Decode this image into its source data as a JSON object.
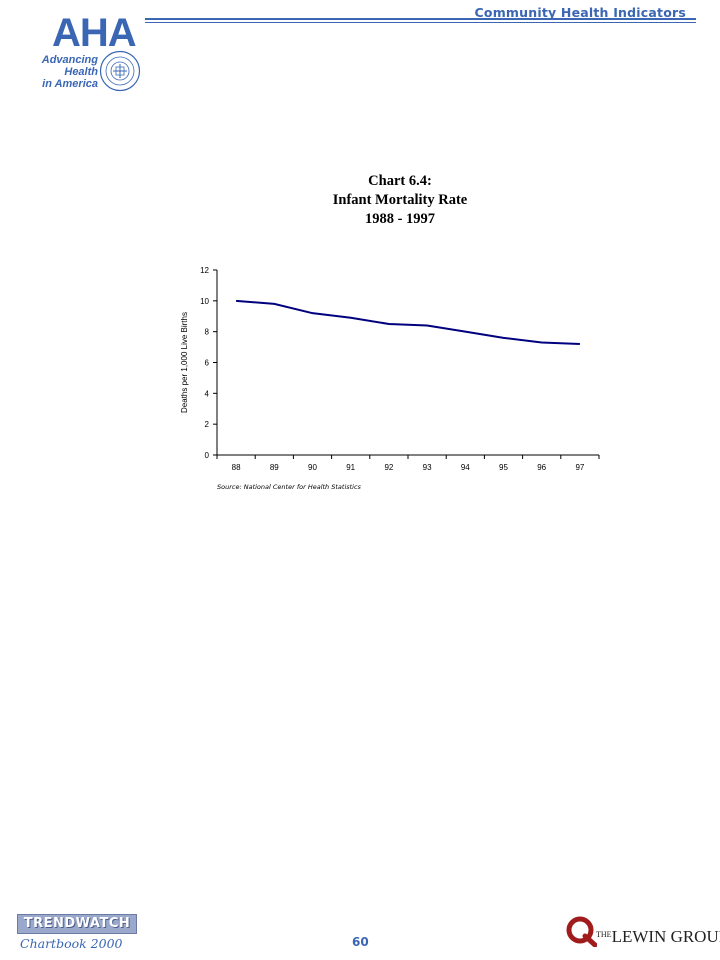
{
  "header": {
    "section_title": "Community Health Indicators",
    "logo_text": "AHA",
    "logo_tagline_line1": "Advancing Health",
    "logo_tagline_line2": "in America",
    "accent_color": "#3a66b4"
  },
  "chart_title": {
    "line1": "Chart 6.4:",
    "line2": "Infant Mortality Rate",
    "line3": "1988 - 1997"
  },
  "chart_data": {
    "type": "line",
    "title": "Chart 6.4: Infant Mortality Rate 1988 - 1997",
    "xlabel": "",
    "ylabel": "Deaths per 1,000 Live Births",
    "categories": [
      "88",
      "89",
      "90",
      "91",
      "92",
      "93",
      "94",
      "95",
      "96",
      "97"
    ],
    "series": [
      {
        "values": [
          10.0,
          9.8,
          9.2,
          8.9,
          8.5,
          8.4,
          8.0,
          7.6,
          7.3,
          7.2
        ]
      }
    ],
    "ylim": [
      0,
      12
    ],
    "yticks": [
      0,
      2,
      4,
      6,
      8,
      10,
      12
    ],
    "grid": false,
    "line_color": "#00007f",
    "source": "Source: National Center for Health Statistics"
  },
  "footer": {
    "publication_badge": "TRENDWATCH",
    "publication_sub": "Chartbook 2000",
    "page_number": "60",
    "publisher_the": "THE",
    "publisher_name": "LEWIN GROUP"
  }
}
